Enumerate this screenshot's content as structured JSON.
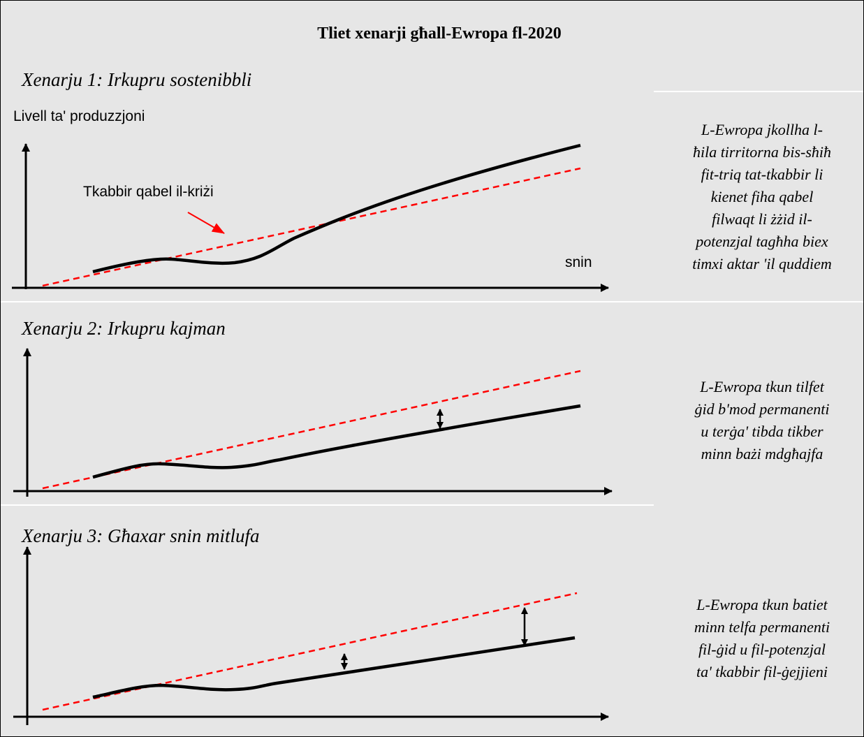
{
  "colors": {
    "background": "#e6e6e6",
    "border": "#000000",
    "actual_line": "#000000",
    "trend_line": "#ff0000",
    "pointer_arrow": "#ff0000"
  },
  "title": "Tliet xenarji għall-Ewropa fl-2020",
  "scenarios": [
    {
      "heading": "Xenarju 1: Irkupru sostenibbli",
      "y_axis_label": "Livell ta' produzzjoni",
      "x_axis_label": "snin",
      "annotation": "Tkabbir qabel il-kriżi",
      "description_lines": [
        "L-Ewropa jkollha l-",
        "ħila tirritorna bis-sħiħ",
        "fit-triq tat-tkabbir li",
        "kienet fiha qabel",
        "filwaqt li żżid il-",
        "potenzjal tagħha biex",
        "timxi aktar 'il quddiem"
      ]
    },
    {
      "heading": "Xenarju 2: Irkupru kajman",
      "description_lines": [
        "L-Ewropa tkun tilfet",
        "ġid b'mod permanenti",
        "u terġa' tibda tikber",
        "minn bażi mdgħajfa"
      ]
    },
    {
      "heading": "Xenarju 3: Għaxar snin mitlufa",
      "description_lines": [
        "L-Ewropa tkun batiet",
        "minn telfa permanenti",
        "fil-ġid u fil-potenzjal",
        "ta' tkabbir fil-ġejjieni"
      ]
    }
  ]
}
